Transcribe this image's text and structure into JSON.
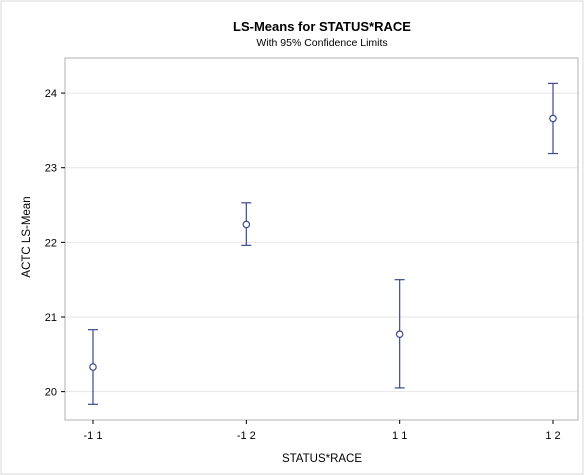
{
  "chart_data": {
    "type": "scatter",
    "title": "LS-Means for STATUS*RACE",
    "subtitle": "With 95% Confidence Limits",
    "xlabel": "STATUS*RACE",
    "ylabel": "ACTC LS-Mean",
    "categories": [
      "-1 1",
      "-1 2",
      "1 1",
      "1 2"
    ],
    "values": [
      20.33,
      22.24,
      20.77,
      23.66
    ],
    "lower": [
      19.83,
      21.96,
      20.05,
      23.19
    ],
    "upper": [
      20.83,
      22.53,
      21.5,
      24.13
    ],
    "ylim": [
      19.62,
      24.47
    ],
    "yticks": [
      20,
      21,
      22,
      23,
      24
    ],
    "grid": "horizontal",
    "legend": "none",
    "marker": "open-circle",
    "color": "#3b4a8c",
    "grid_color": "#e6e6e6",
    "frame_color": "#b0b0b0"
  }
}
